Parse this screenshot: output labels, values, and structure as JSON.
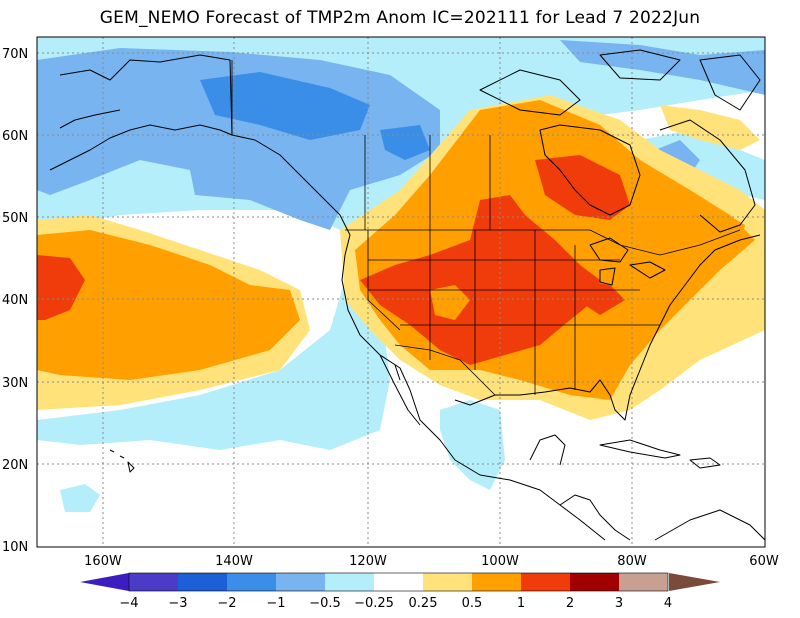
{
  "title": "GEM_NEMO Forecast of TMP2m Anom IC=202111 for Lead 7 2022Jun",
  "lat_labels": [
    "70N",
    "60N",
    "50N",
    "40N",
    "30N",
    "20N",
    "10N"
  ],
  "lon_labels": [
    "160W",
    "140W",
    "120W",
    "100W",
    "80W",
    "60W"
  ],
  "colorbar": {
    "labels": [
      "−4",
      "−3",
      "−2",
      "−1",
      "−0.5",
      "−0.25",
      "0.25",
      "0.5",
      "1",
      "2",
      "3",
      "4"
    ],
    "colors": [
      "#3a1ec0",
      "#4b3cc8",
      "#1d5fd6",
      "#3a8ee8",
      "#78b4f0",
      "#b4eefa",
      "#ffffff",
      "#ffe37a",
      "#ffa000",
      "#f03c0a",
      "#a00000",
      "#c8a092",
      "#7a4a3a"
    ]
  }
}
